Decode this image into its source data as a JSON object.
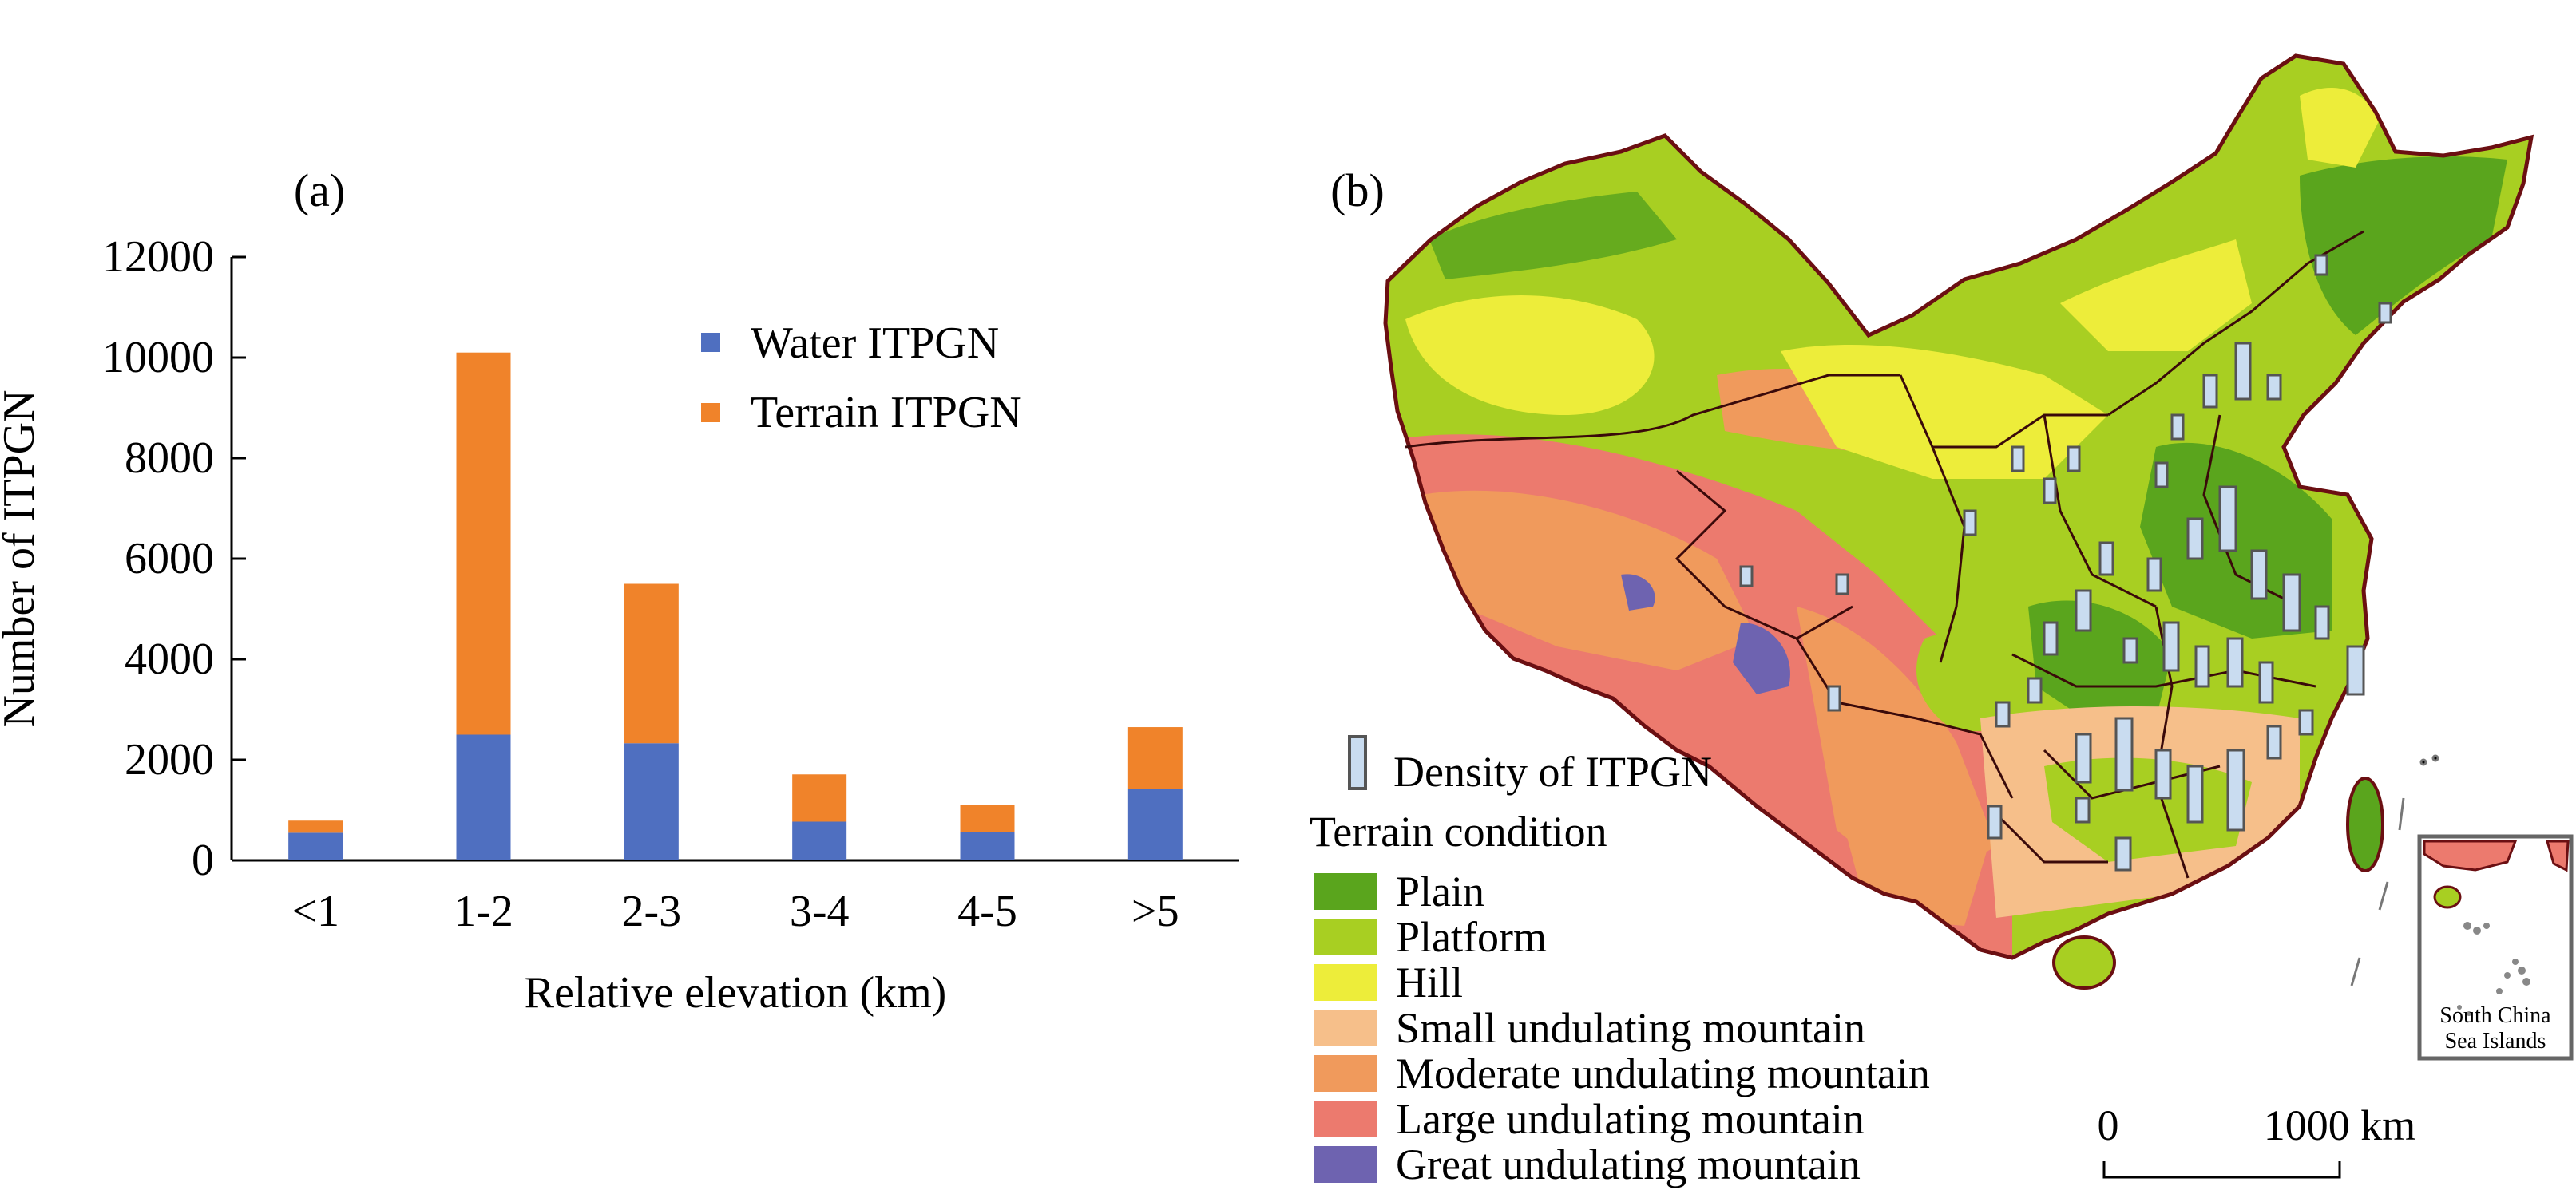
{
  "chart_data": [
    {
      "type": "bar",
      "stacked": true,
      "panel_label": "(a)",
      "categories": [
        "<1",
        "1-2",
        "2-3",
        "3-4",
        "4-5",
        ">5"
      ],
      "series": [
        {
          "name": "Water ITPGN",
          "values": [
            550,
            2500,
            2330,
            770,
            560,
            1420
          ],
          "color": "#4f6fc0"
        },
        {
          "name": "Terrain ITPGN",
          "values": [
            240,
            7600,
            3170,
            940,
            550,
            1230
          ],
          "color": "#f0832a"
        }
      ],
      "yticks": [
        "0",
        "2000",
        "4000",
        "6000",
        "8000",
        "10000",
        "12000"
      ],
      "ylim": [
        0,
        12000
      ],
      "xlabel": "Relative elevation (km)",
      "ylabel": "Number of ITPGN",
      "legend_position": "top-right",
      "grid": false
    }
  ],
  "map": {
    "panel_label": "(b)",
    "density_label": "Density of ITPGN",
    "legend_title": "Terrain condition",
    "terrain_classes": [
      {
        "label": "Plain",
        "color": "#5aa51d"
      },
      {
        "label": "Platform",
        "color": "#a8cf22"
      },
      {
        "label": "Hill",
        "color": "#eded3a"
      },
      {
        "label": "Small undulating mountain",
        "color": "#f6bf8a"
      },
      {
        "label": "Moderate undulating mountain",
        "color": "#f09a5c"
      },
      {
        "label": "Large undulating mountain",
        "color": "#ec7a6e"
      },
      {
        "label": "Great undulating mountain",
        "color": "#6e63b0"
      }
    ],
    "scale_zero": "0",
    "scale_label": "1000 km",
    "inset_label_line1": "South China",
    "inset_label_line2": "Sea Islands"
  }
}
